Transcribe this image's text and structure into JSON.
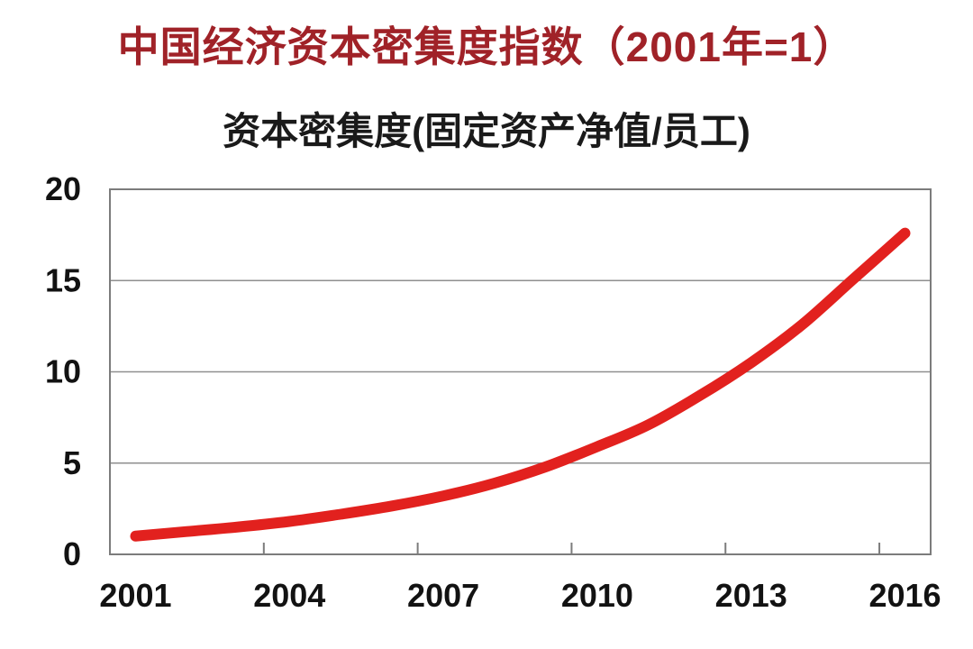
{
  "page": {
    "main_title": "中国经济资本密集度指数（2001年=1）",
    "main_title_color": "#A02228",
    "background_color": "#FFFFFF"
  },
  "chart_data": {
    "type": "line",
    "title": "资本密集度(固定资产净值/员工)",
    "x": [
      2001,
      2002,
      2003,
      2004,
      2005,
      2006,
      2007,
      2008,
      2009,
      2010,
      2011,
      2012,
      2013,
      2014,
      2015,
      2016
    ],
    "values": [
      1.0,
      1.25,
      1.5,
      1.8,
      2.2,
      2.65,
      3.2,
      3.9,
      4.8,
      5.9,
      7.1,
      8.7,
      10.5,
      12.6,
      15.1,
      17.6
    ],
    "x_tick_labels": [
      "2001",
      "2004",
      "2007",
      "2010",
      "2013",
      "2016"
    ],
    "y_ticks": [
      0,
      5,
      10,
      15,
      20
    ],
    "ylim": [
      0,
      20
    ],
    "xlabel": "",
    "ylabel": "",
    "grid": "horizontal",
    "legend_visible": false,
    "line_color": "#E2211E",
    "line_width": 12,
    "grid_color": "#8f8f8f",
    "border_color": "#7c7c7c",
    "tick_color": "#7c7c7c",
    "label_color": "#121212"
  }
}
